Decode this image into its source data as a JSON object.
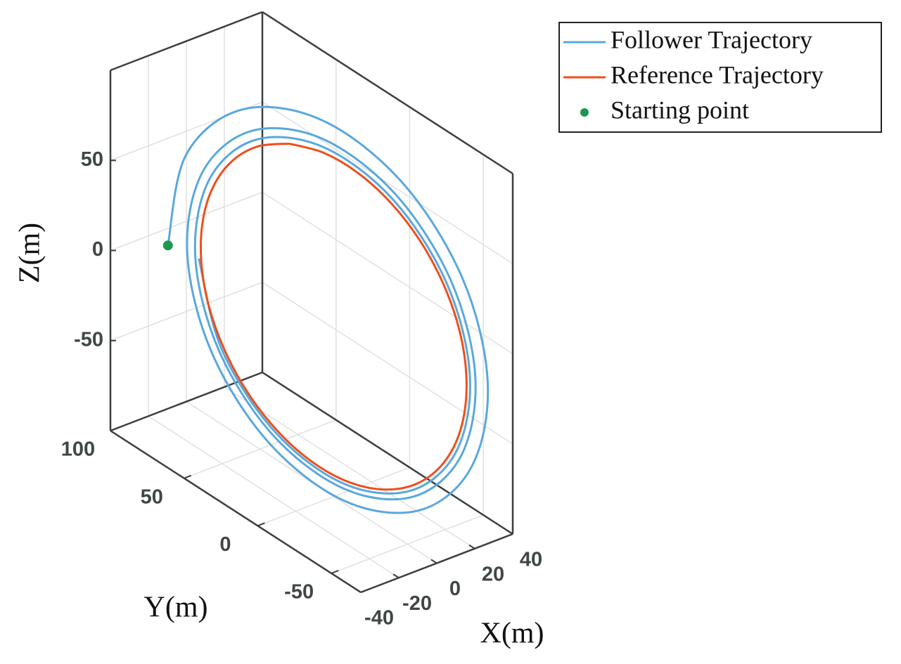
{
  "chart_data": {
    "type": "line3d",
    "xlabel": "X(m)",
    "ylabel": "Y(m)",
    "zlabel": "Z(m)",
    "xlim": [
      -40,
      40
    ],
    "ylim": [
      -70,
      100
    ],
    "zlim": [
      -100,
      100
    ],
    "xticks": [
      -40,
      -20,
      0,
      20,
      40
    ],
    "yticks": [
      -50,
      0,
      50,
      100
    ],
    "zticks": [
      -50,
      0,
      50
    ],
    "grid": true,
    "legend": "upper right",
    "series": [
      {
        "name": "Follower Trajectory",
        "color": "#5aa8dc",
        "x": [
          -42.3,
          -30.4,
          -11.1,
          10.9,
          29.3,
          39.7,
          39.3,
          28.4,
          10.4,
          -10.3,
          -27.7,
          -37.6,
          -37.3,
          -27.1,
          -9.9,
          9.9,
          26.6,
          36.3,
          36.1,
          26.3,
          9.6,
          -9.6,
          -26.0,
          -35.4,
          -35.3,
          -25.7,
          -9.4,
          9.4,
          25.5,
          34.8,
          34.7,
          25.3,
          9.3,
          -9.3,
          -25.2,
          -34.5,
          -34.4
        ],
        "y": [
          58.0,
          61.0,
          47.9,
          22.3,
          -8.4,
          -36.2,
          -53.9,
          -56.9,
          -44.9,
          -21.0,
          8.0,
          34.3,
          51.3,
          54.3,
          42.9,
          20.2,
          -7.7,
          -33.0,
          -49.6,
          -52.6,
          -41.7,
          -19.6,
          7.5,
          32.2,
          48.4,
          51.5,
          40.9,
          19.3,
          -7.3,
          -31.7,
          -47.7,
          -50.8,
          -40.3,
          -19.0,
          7.2,
          31.4,
          47.2
        ],
        "z": [
          25.9,
          69.8,
          94.0,
          92.8,
          67.2,
          24.3,
          -24.1,
          -65.1,
          -88.1,
          -87.3,
          -63.4,
          -23.0,
          22.9,
          62.1,
          84.3,
          83.8,
          61.0,
          22.2,
          -22.1,
          -60.2,
          -81.9,
          -81.5,
          -59.5,
          -21.7,
          21.6,
          58.9,
          80.2,
          80.0,
          58.5,
          21.3,
          -21.3,
          -58.1,
          -79.2,
          -79.1,
          -57.8,
          -21.1,
          21.1
        ]
      },
      {
        "name": "Reference Trajectory",
        "color": "#f04e1a",
        "x": [
          0,
          9.1,
          17.5,
          24.7,
          30.3,
          33.8,
          35,
          33.8,
          30.3,
          24.7,
          17.5,
          9.1,
          0,
          -9.1,
          -17.5,
          -24.7,
          -30.3,
          -33.8,
          -35,
          -33.8,
          -30.3,
          -24.7,
          -17.5,
          -9.1,
          0
        ],
        "y": [
          30,
          18.6,
          6,
          -7.1,
          -19.6,
          -30.8,
          -40,
          -46.4,
          -49.6,
          -49.5,
          -46,
          -39.4,
          -30,
          -18.6,
          -6,
          7.1,
          19.6,
          30.8,
          40,
          46.4,
          49.6,
          49.5,
          46,
          39.4,
          30
        ],
        "z": [
          80,
          77.3,
          69.3,
          56.6,
          40,
          20.7,
          0,
          -20.7,
          -40,
          -56.6,
          -69.3,
          -77.3,
          -80,
          -77.3,
          -69.3,
          -56.6,
          -40,
          -20.7,
          0,
          20.7,
          40,
          56.6,
          69.3,
          77.3,
          80
        ]
      },
      {
        "name": "Starting point",
        "color": "#1a9850",
        "marker": "dot",
        "x": [
          -42.3
        ],
        "y": [
          58.0
        ],
        "z": [
          25.9
        ]
      }
    ]
  }
}
